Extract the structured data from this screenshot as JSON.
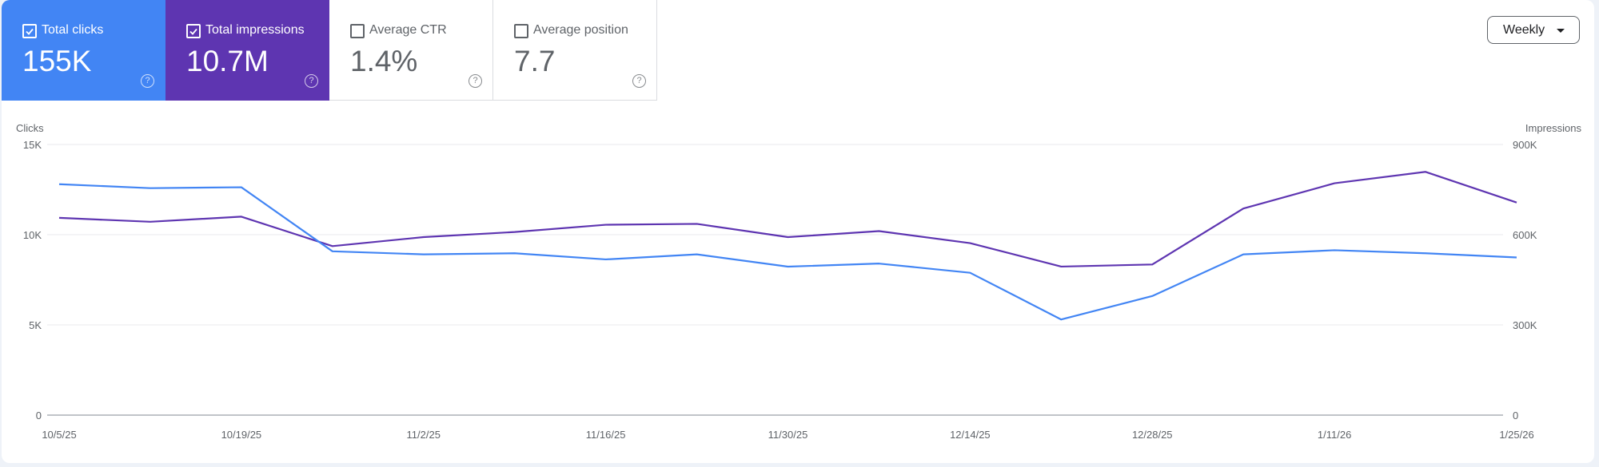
{
  "metrics": [
    {
      "label": "Total clicks",
      "value": "155K",
      "checked": true,
      "color": "#4285f4"
    },
    {
      "label": "Total impressions",
      "value": "10.7M",
      "checked": true,
      "color": "#5e35b1"
    },
    {
      "label": "Average CTR",
      "value": "1.4%",
      "checked": false
    },
    {
      "label": "Average position",
      "value": "7.7",
      "checked": false
    }
  ],
  "help_glyph": "?",
  "granularity": {
    "label": "Weekly",
    "icon": "caret-down-icon"
  },
  "chart_data": {
    "type": "line",
    "x": [
      "10/5/25",
      "10/12/25",
      "10/19/25",
      "10/26/25",
      "11/2/25",
      "11/9/25",
      "11/16/25",
      "11/23/25",
      "11/30/25",
      "12/7/25",
      "12/14/25",
      "12/21/25",
      "12/28/25",
      "1/4/26",
      "1/11/26",
      "1/18/26",
      "1/25/26"
    ],
    "xtick_labels": [
      "10/5/25",
      "10/19/25",
      "11/2/25",
      "11/16/25",
      "11/30/25",
      "12/14/25",
      "12/28/25",
      "1/11/26",
      "1/25/26"
    ],
    "left_axis": {
      "label": "Clicks",
      "ticks": [
        "0",
        "5K",
        "10K",
        "15K"
      ],
      "ylim": [
        0,
        15000
      ]
    },
    "right_axis": {
      "label": "Impressions",
      "ticks": [
        "0",
        "300K",
        "600K",
        "900K"
      ],
      "ylim": [
        0,
        900000
      ]
    },
    "grid": true,
    "series": [
      {
        "name": "Clicks",
        "axis": "left",
        "color": "#4285f4",
        "values": [
          12800,
          12580,
          12630,
          9080,
          8910,
          8970,
          8630,
          8910,
          8230,
          8400,
          7890,
          5300,
          6600,
          8910,
          9140,
          8970,
          8740
        ]
      },
      {
        "name": "Impressions",
        "axis": "right",
        "color": "#5e35b1",
        "values": [
          656000,
          643000,
          660000,
          562000,
          592000,
          609000,
          633000,
          636000,
          592000,
          612000,
          572000,
          494000,
          501000,
          687000,
          771000,
          809000,
          707000
        ]
      }
    ]
  }
}
